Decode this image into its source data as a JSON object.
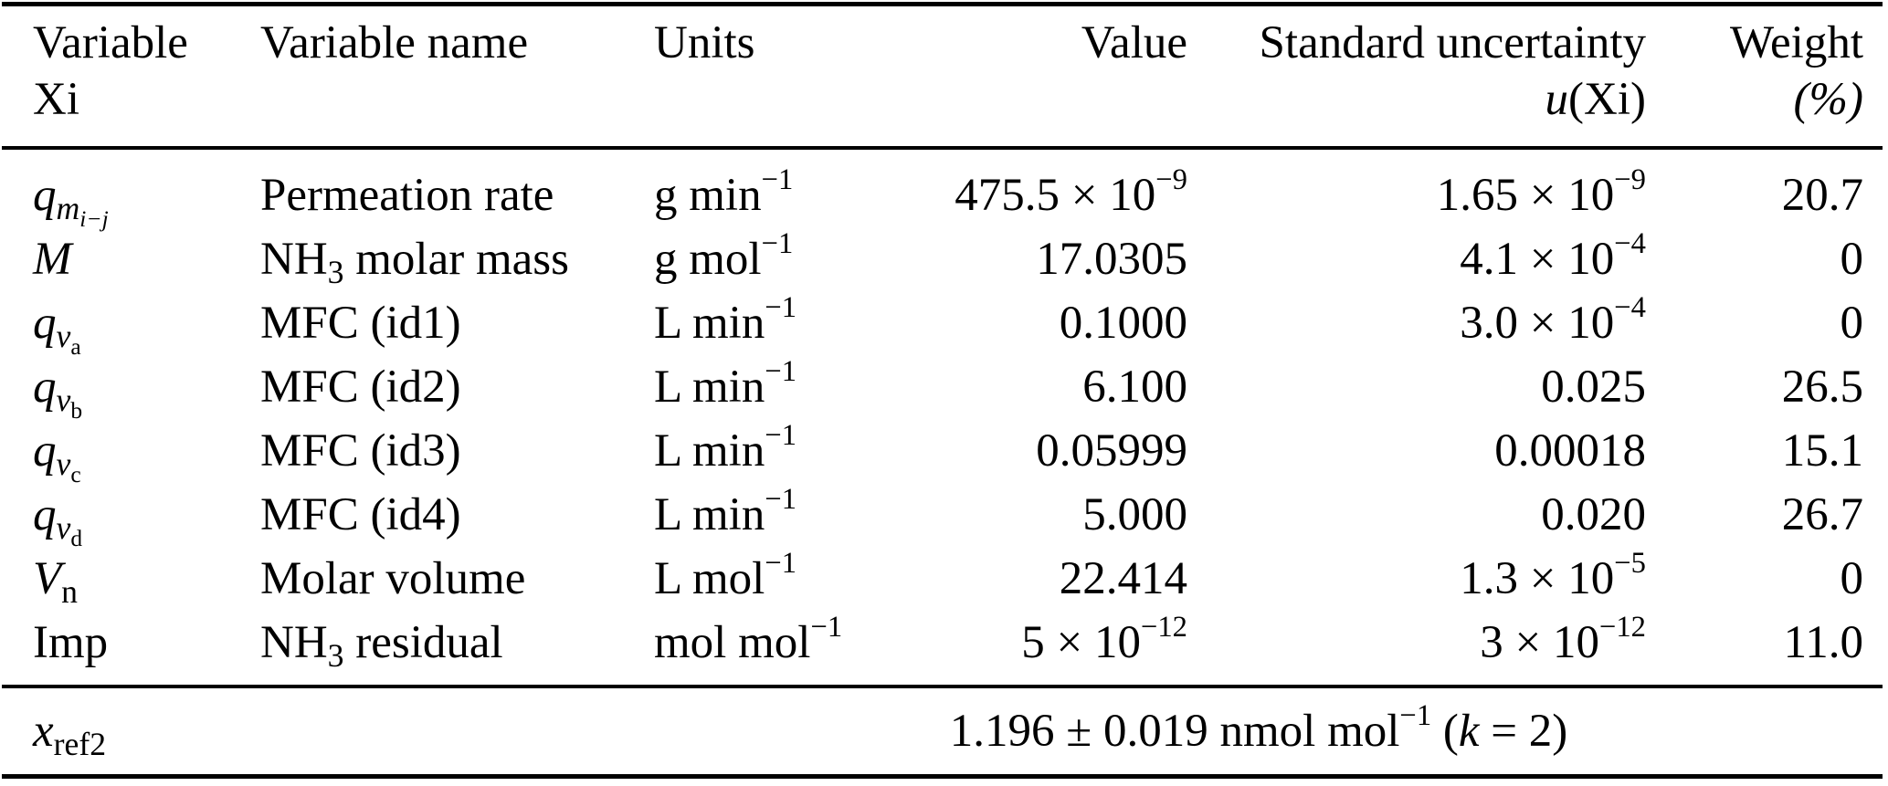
{
  "page": {
    "background": "#ffffff",
    "text_color": "#000000"
  },
  "table": {
    "header": {
      "variable_line1": [
        {
          "t": "Variable"
        }
      ],
      "variable_line2": [
        {
          "t": "Xi"
        }
      ],
      "name": [
        {
          "t": "Variable name"
        }
      ],
      "units": [
        {
          "t": "Units"
        }
      ],
      "value": [
        {
          "t": "Value"
        }
      ],
      "uncertainty_line1": [
        {
          "t": "Standard uncertainty"
        }
      ],
      "uncertainty_line2": [
        {
          "t": "u",
          "s": "i"
        },
        {
          "t": "(Xi)"
        }
      ],
      "weight_line1": [
        {
          "t": "Weight"
        }
      ],
      "weight_line2": [
        {
          "t": "(%)",
          "s": "i"
        }
      ]
    },
    "rows": [
      {
        "variable": [
          {
            "t": "q",
            "s": "i"
          },
          {
            "t": "m",
            "s": "subi"
          },
          {
            "t": "i−j",
            "s": "subsubi"
          }
        ],
        "name": [
          {
            "t": "Permeation rate"
          }
        ],
        "units": [
          {
            "t": "g min"
          },
          {
            "t": "−1",
            "s": "sup"
          }
        ],
        "value": [
          {
            "t": "475.5 × 10"
          },
          {
            "t": "−9",
            "s": "sup"
          }
        ],
        "uncertainty": [
          {
            "t": "1.65 × 10"
          },
          {
            "t": "−9",
            "s": "sup"
          }
        ],
        "weight": [
          {
            "t": "20.7"
          }
        ]
      },
      {
        "variable": [
          {
            "t": "M",
            "s": "i"
          }
        ],
        "name": [
          {
            "t": "NH"
          },
          {
            "t": "3",
            "s": "sub"
          },
          {
            "t": " molar mass"
          }
        ],
        "units": [
          {
            "t": "g mol"
          },
          {
            "t": "−1",
            "s": "sup"
          }
        ],
        "value": [
          {
            "t": "17.0305"
          }
        ],
        "uncertainty": [
          {
            "t": "4.1 × 10"
          },
          {
            "t": "−4",
            "s": "sup"
          }
        ],
        "weight": [
          {
            "t": "0"
          }
        ]
      },
      {
        "variable": [
          {
            "t": "q",
            "s": "i"
          },
          {
            "t": "v",
            "s": "subi"
          },
          {
            "t": "a",
            "s": "subsub"
          }
        ],
        "name": [
          {
            "t": "MFC (id1)"
          }
        ],
        "units": [
          {
            "t": "L min"
          },
          {
            "t": "−1",
            "s": "sup"
          }
        ],
        "value": [
          {
            "t": "0.1000"
          }
        ],
        "uncertainty": [
          {
            "t": "3.0 × 10"
          },
          {
            "t": "−4",
            "s": "sup"
          }
        ],
        "weight": [
          {
            "t": "0"
          }
        ]
      },
      {
        "variable": [
          {
            "t": "q",
            "s": "i"
          },
          {
            "t": "v",
            "s": "subi"
          },
          {
            "t": "b",
            "s": "subsub"
          }
        ],
        "name": [
          {
            "t": "MFC (id2)"
          }
        ],
        "units": [
          {
            "t": "L min"
          },
          {
            "t": "−1",
            "s": "sup"
          }
        ],
        "value": [
          {
            "t": "6.100"
          }
        ],
        "uncertainty": [
          {
            "t": "0.025"
          }
        ],
        "weight": [
          {
            "t": "26.5"
          }
        ]
      },
      {
        "variable": [
          {
            "t": "q",
            "s": "i"
          },
          {
            "t": "v",
            "s": "subi"
          },
          {
            "t": "c",
            "s": "subsub"
          }
        ],
        "name": [
          {
            "t": "MFC (id3)"
          }
        ],
        "units": [
          {
            "t": "L min"
          },
          {
            "t": "−1",
            "s": "sup"
          }
        ],
        "value": [
          {
            "t": "0.05999"
          }
        ],
        "uncertainty": [
          {
            "t": "0.00018"
          }
        ],
        "weight": [
          {
            "t": "15.1"
          }
        ]
      },
      {
        "variable": [
          {
            "t": "q",
            "s": "i"
          },
          {
            "t": "v",
            "s": "subi"
          },
          {
            "t": "d",
            "s": "subsub"
          }
        ],
        "name": [
          {
            "t": "MFC (id4)"
          }
        ],
        "units": [
          {
            "t": "L min"
          },
          {
            "t": "−1",
            "s": "sup"
          }
        ],
        "value": [
          {
            "t": "5.000"
          }
        ],
        "uncertainty": [
          {
            "t": "0.020"
          }
        ],
        "weight": [
          {
            "t": "26.7"
          }
        ]
      },
      {
        "variable": [
          {
            "t": "V",
            "s": "i"
          },
          {
            "t": "n",
            "s": "sub"
          }
        ],
        "name": [
          {
            "t": "Molar volume"
          }
        ],
        "units": [
          {
            "t": "L mol"
          },
          {
            "t": "−1",
            "s": "sup"
          }
        ],
        "value": [
          {
            "t": "22.414"
          }
        ],
        "uncertainty": [
          {
            "t": "1.3 × 10"
          },
          {
            "t": "−5",
            "s": "sup"
          }
        ],
        "weight": [
          {
            "t": "0"
          }
        ]
      },
      {
        "variable": [
          {
            "t": "Imp"
          }
        ],
        "name": [
          {
            "t": "NH"
          },
          {
            "t": "3",
            "s": "sub"
          },
          {
            "t": " residual"
          }
        ],
        "units": [
          {
            "t": "mol mol"
          },
          {
            "t": "−1",
            "s": "sup"
          }
        ],
        "value": [
          {
            "t": "5 × 10"
          },
          {
            "t": "−12",
            "s": "sup"
          }
        ],
        "uncertainty": [
          {
            "t": "3 × 10"
          },
          {
            "t": "−12",
            "s": "sup"
          }
        ],
        "weight": [
          {
            "t": "11.0"
          }
        ]
      }
    ],
    "footer": {
      "variable": [
        {
          "t": "x",
          "s": "i"
        },
        {
          "t": "ref2",
          "s": "sub"
        }
      ],
      "result": [
        {
          "t": "1.196 ± 0.019 nmol mol"
        },
        {
          "t": "−1",
          "s": "sup"
        },
        {
          "t": " ("
        },
        {
          "t": "k",
          "s": "i"
        },
        {
          "t": " = 2)"
        }
      ]
    }
  }
}
